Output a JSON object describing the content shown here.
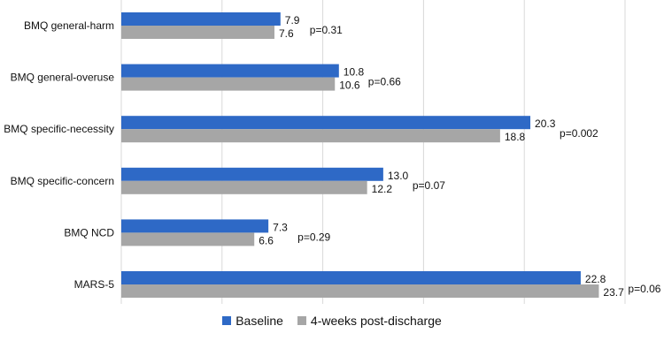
{
  "chart_data": {
    "type": "bar",
    "orientation": "horizontal",
    "categories": [
      "BMQ general-harm",
      "BMQ general-overuse",
      "BMQ specific-necessity",
      "BMQ specific-concern",
      "BMQ NCD",
      "MARS-5"
    ],
    "series": [
      {
        "name": "Baseline",
        "color": "#2e69c6",
        "values": [
          7.9,
          10.8,
          20.3,
          13.0,
          7.3,
          22.8
        ],
        "labels": [
          "7.9",
          "10.8",
          "20.3",
          "13.0",
          "7.3",
          "22.8"
        ]
      },
      {
        "name": "4-weeks post-discharge",
        "color": "#a6a6a6",
        "values": [
          7.6,
          10.6,
          18.8,
          12.2,
          6.6,
          23.7
        ],
        "labels": [
          "7.6",
          "10.6",
          "18.8",
          "12.2",
          "6.6",
          "23.7"
        ]
      }
    ],
    "annotations": [
      "p=0.31",
      "p=0.66",
      "p=0.002",
      "p=0.07",
      "p=0.29",
      "p=0.06"
    ],
    "xlim": [
      0,
      25
    ],
    "xticks": [
      0,
      5,
      10,
      15,
      20,
      25
    ],
    "grid": true,
    "legend": "bottom"
  }
}
